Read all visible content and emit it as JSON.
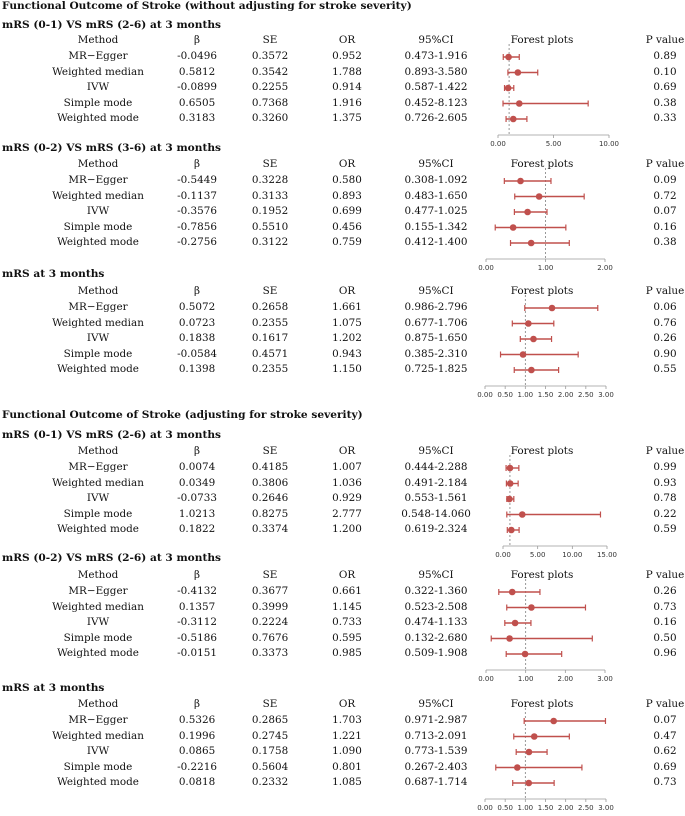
{
  "colors": {
    "marker": "#c0504d",
    "axis": "#9a9a9a",
    "refline": "#7f7f7f",
    "text": "#111111"
  },
  "headers": {
    "method": "Method",
    "beta": "β",
    "se": "SE",
    "or": "OR",
    "ci": "95%CI",
    "forest": "Forest plots",
    "p": "P value"
  },
  "sections": [
    {
      "title": "Functional Outcome of Stroke (without adjusting for stroke severity)"
    },
    {
      "title": "Functional Outcome of Stroke (adjusting for stroke severity)"
    }
  ],
  "chart_data": [
    {
      "type": "forest",
      "title": "mRS (0-1) VS mRS (2-6) at 3 months",
      "xlim": [
        0,
        10
      ],
      "ticks": [
        "0.00",
        "5.00",
        "10.00"
      ],
      "tick_values": [
        0,
        5,
        10
      ],
      "ref_line": 1,
      "rows": [
        {
          "method": "MR−Egger",
          "beta": "-0.0496",
          "se": "0.3572",
          "or": "0.952",
          "ci": "0.473-1.916",
          "p": "0.89",
          "or_v": 0.952,
          "lo": 0.473,
          "hi": 1.916
        },
        {
          "method": "Weighted median",
          "beta": "0.5812",
          "se": "0.3542",
          "or": "1.788",
          "ci": "0.893-3.580",
          "p": "0.10",
          "or_v": 1.788,
          "lo": 0.893,
          "hi": 3.58
        },
        {
          "method": "IVW",
          "beta": "-0.0899",
          "se": "0.2255",
          "or": "0.914",
          "ci": "0.587-1.422",
          "p": "0.69",
          "or_v": 0.914,
          "lo": 0.587,
          "hi": 1.422
        },
        {
          "method": "Simple mode",
          "beta": "0.6505",
          "se": "0.7368",
          "or": "1.916",
          "ci": "0.452-8.123",
          "p": "0.38",
          "or_v": 1.916,
          "lo": 0.452,
          "hi": 8.123
        },
        {
          "method": "Weighted mode",
          "beta": "0.3183",
          "se": "0.3260",
          "or": "1.375",
          "ci": "0.726-2.605",
          "p": "0.33",
          "or_v": 1.375,
          "lo": 0.726,
          "hi": 2.605
        }
      ]
    },
    {
      "type": "forest",
      "title": "mRS (0-2) VS mRS (3-6) at 3 months",
      "xlim": [
        0,
        2
      ],
      "ticks": [
        "0.00",
        "1.00",
        "2.00"
      ],
      "tick_values": [
        0,
        1,
        2
      ],
      "ref_line": 1,
      "rows": [
        {
          "method": "MR−Egger",
          "beta": "-0.5449",
          "se": "0.3228",
          "or": "0.580",
          "ci": "0.308-1.092",
          "p": "0.09",
          "or_v": 0.58,
          "lo": 0.308,
          "hi": 1.092
        },
        {
          "method": "Weighted median",
          "beta": "-0.1137",
          "se": "0.3133",
          "or": "0.893",
          "ci": "0.483-1.650",
          "p": "0.72",
          "or_v": 0.893,
          "lo": 0.483,
          "hi": 1.65
        },
        {
          "method": "IVW",
          "beta": "-0.3576",
          "se": "0.1952",
          "or": "0.699",
          "ci": "0.477-1.025",
          "p": "0.07",
          "or_v": 0.699,
          "lo": 0.477,
          "hi": 1.025
        },
        {
          "method": "Simple mode",
          "beta": "-0.7856",
          "se": "0.5510",
          "or": "0.456",
          "ci": "0.155-1.342",
          "p": "0.16",
          "or_v": 0.456,
          "lo": 0.155,
          "hi": 1.342
        },
        {
          "method": "Weighted mode",
          "beta": "-0.2756",
          "se": "0.3122",
          "or": "0.759",
          "ci": "0.412-1.400",
          "p": "0.38",
          "or_v": 0.759,
          "lo": 0.412,
          "hi": 1.4
        }
      ]
    },
    {
      "type": "forest",
      "title": "mRS at 3 months",
      "xlim": [
        0,
        3
      ],
      "ticks": [
        "0.00",
        "0.50",
        "1.00",
        "1.50",
        "2.00",
        "2.50",
        "3.00"
      ],
      "tick_values": [
        0,
        0.5,
        1,
        1.5,
        2,
        2.5,
        3
      ],
      "ref_line": 1,
      "rows": [
        {
          "method": "MR−Egger",
          "beta": "0.5072",
          "se": "0.2658",
          "or": "1.661",
          "ci": "0.986-2.796",
          "p": "0.06",
          "or_v": 1.661,
          "lo": 0.986,
          "hi": 2.796
        },
        {
          "method": "Weighted median",
          "beta": "0.0723",
          "se": "0.2355",
          "or": "1.075",
          "ci": "0.677-1.706",
          "p": "0.76",
          "or_v": 1.075,
          "lo": 0.677,
          "hi": 1.706
        },
        {
          "method": "IVW",
          "beta": "0.1838",
          "se": "0.1617",
          "or": "1.202",
          "ci": "0.875-1.650",
          "p": "0.26",
          "or_v": 1.202,
          "lo": 0.875,
          "hi": 1.65
        },
        {
          "method": "Simple mode",
          "beta": "-0.0584",
          "se": "0.4571",
          "or": "0.943",
          "ci": "0.385-2.310",
          "p": "0.90",
          "or_v": 0.943,
          "lo": 0.385,
          "hi": 2.31
        },
        {
          "method": "Weighted mode",
          "beta": "0.1398",
          "se": "0.2355",
          "or": "1.150",
          "ci": "0.725-1.825",
          "p": "0.55",
          "or_v": 1.15,
          "lo": 0.725,
          "hi": 1.825
        }
      ]
    },
    {
      "type": "forest",
      "title": "mRS (0-1) VS mRS (2-6) at 3 months",
      "xlim": [
        0,
        15
      ],
      "ticks": [
        "0.00",
        "5.00",
        "10.00",
        "15.00"
      ],
      "tick_values": [
        0,
        5,
        10,
        15
      ],
      "ref_line": 1,
      "rows": [
        {
          "method": "MR−Egger",
          "beta": "0.0074",
          "se": "0.4185",
          "or": "1.007",
          "ci": "0.444-2.288",
          "p": "0.99",
          "or_v": 1.007,
          "lo": 0.444,
          "hi": 2.288
        },
        {
          "method": "Weighted median",
          "beta": "0.0349",
          "se": "0.3806",
          "or": "1.036",
          "ci": "0.491-2.184",
          "p": "0.93",
          "or_v": 1.036,
          "lo": 0.491,
          "hi": 2.184
        },
        {
          "method": "IVW",
          "beta": "-0.0733",
          "se": "0.2646",
          "or": "0.929",
          "ci": "0.553-1.561",
          "p": "0.78",
          "or_v": 0.929,
          "lo": 0.553,
          "hi": 1.561
        },
        {
          "method": "Simple mode",
          "beta": "1.0213",
          "se": "0.8275",
          "or": "2.777",
          "ci": "0.548-14.060",
          "p": "0.22",
          "or_v": 2.777,
          "lo": 0.548,
          "hi": 14.06
        },
        {
          "method": "Weighted mode",
          "beta": "0.1822",
          "se": "0.3374",
          "or": "1.200",
          "ci": "0.619-2.324",
          "p": "0.59",
          "or_v": 1.2,
          "lo": 0.619,
          "hi": 2.324
        }
      ]
    },
    {
      "type": "forest",
      "title": "mRS (0-2) VS mRS (2-6) at 3 months",
      "xlim": [
        0,
        3
      ],
      "ticks": [
        "0.00",
        "1.00",
        "2.00",
        "3.00"
      ],
      "tick_values": [
        0,
        1,
        2,
        3
      ],
      "ref_line": 1,
      "rows": [
        {
          "method": "MR−Egger",
          "beta": "-0.4132",
          "se": "0.3677",
          "or": "0.661",
          "ci": "0.322-1.360",
          "p": "0.26",
          "or_v": 0.661,
          "lo": 0.322,
          "hi": 1.36
        },
        {
          "method": "Weighted median",
          "beta": "0.1357",
          "se": "0.3999",
          "or": "1.145",
          "ci": "0.523-2.508",
          "p": "0.73",
          "or_v": 1.145,
          "lo": 0.523,
          "hi": 2.508
        },
        {
          "method": "IVW",
          "beta": "-0.3112",
          "se": "0.2224",
          "or": "0.733",
          "ci": "0.474-1.133",
          "p": "0.16",
          "or_v": 0.733,
          "lo": 0.474,
          "hi": 1.133
        },
        {
          "method": "Simple mode",
          "beta": "-0.5186",
          "se": "0.7676",
          "or": "0.595",
          "ci": "0.132-2.680",
          "p": "0.50",
          "or_v": 0.595,
          "lo": 0.132,
          "hi": 2.68
        },
        {
          "method": "Weighted mode",
          "beta": "-0.0151",
          "se": "0.3373",
          "or": "0.985",
          "ci": "0.509-1.908",
          "p": "0.96",
          "or_v": 0.985,
          "lo": 0.509,
          "hi": 1.908
        }
      ]
    },
    {
      "type": "forest",
      "title": "mRS at 3 months",
      "xlim": [
        0,
        3
      ],
      "ticks": [
        "0.00",
        "0.50",
        "1.00",
        "1.50",
        "2.00",
        "2.50",
        "3.00"
      ],
      "tick_values": [
        0,
        0.5,
        1,
        1.5,
        2,
        2.5,
        3
      ],
      "ref_line": 1,
      "rows": [
        {
          "method": "MR−Egger",
          "beta": "0.5326",
          "se": "0.2865",
          "or": "1.703",
          "ci": "0.971-2.987",
          "p": "0.07",
          "or_v": 1.703,
          "lo": 0.971,
          "hi": 2.987
        },
        {
          "method": "Weighted median",
          "beta": "0.1996",
          "se": "0.2745",
          "or": "1.221",
          "ci": "0.713-2.091",
          "p": "0.47",
          "or_v": 1.221,
          "lo": 0.713,
          "hi": 2.091
        },
        {
          "method": "IVW",
          "beta": "0.0865",
          "se": "0.1758",
          "or": "1.090",
          "ci": "0.773-1.539",
          "p": "0.62",
          "or_v": 1.09,
          "lo": 0.773,
          "hi": 1.539
        },
        {
          "method": "Simple mode",
          "beta": "-0.2216",
          "se": "0.5604",
          "or": "0.801",
          "ci": "0.267-2.403",
          "p": "0.69",
          "or_v": 0.801,
          "lo": 0.267,
          "hi": 2.403
        },
        {
          "method": "Weighted mode",
          "beta": "0.0818",
          "se": "0.2332",
          "or": "1.085",
          "ci": "0.687-1.714",
          "p": "0.73",
          "or_v": 1.085,
          "lo": 0.687,
          "hi": 1.714
        }
      ]
    }
  ]
}
